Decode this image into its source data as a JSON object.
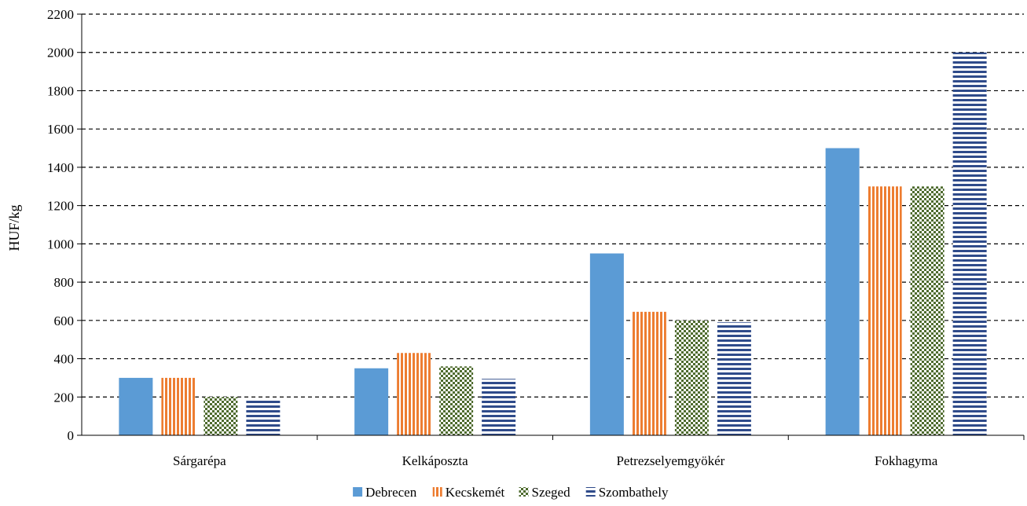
{
  "chart_data": {
    "type": "bar",
    "title": "",
    "xlabel": "",
    "ylabel": "HUF/kg",
    "ylim": [
      0,
      2200
    ],
    "yticks": [
      0,
      200,
      400,
      600,
      800,
      1000,
      1200,
      1400,
      1600,
      1800,
      2000,
      2200
    ],
    "grid": true,
    "legend_position": "bottom",
    "categories": [
      "Sárgarépa",
      "Kelkáposzta",
      "Petrezselyemgyökér",
      "Fokhagyma"
    ],
    "series": [
      {
        "name": "Debrecen",
        "values": [
          300,
          350,
          950,
          1500
        ],
        "color": "#5B9BD5",
        "pattern": "solid"
      },
      {
        "name": "Kecskemét",
        "values": [
          300,
          430,
          645,
          1300
        ],
        "color": "#ED7D31",
        "pattern": "vertical-stripes"
      },
      {
        "name": "Szeged",
        "values": [
          200,
          360,
          600,
          1300
        ],
        "color": "#4E6B2E",
        "pattern": "checker"
      },
      {
        "name": "Szombathely",
        "values": [
          185,
          295,
          590,
          2000
        ],
        "color": "#2F4B8A",
        "pattern": "horizontal-stripes"
      }
    ]
  }
}
